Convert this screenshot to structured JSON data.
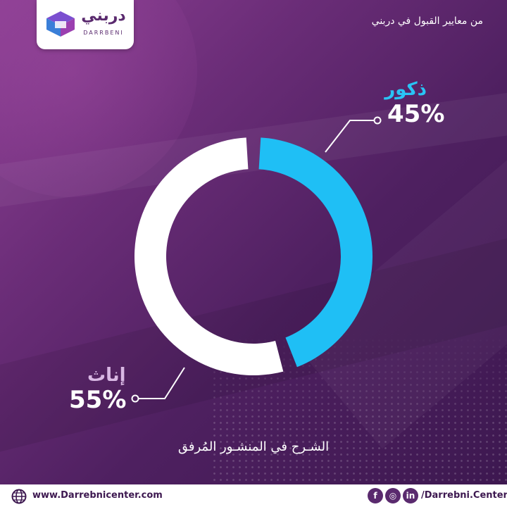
{
  "logo": {
    "arabic": "دربني",
    "latin": "DARRBENI"
  },
  "heading": "من معايير القبول في دربني",
  "chart_data": {
    "type": "pie",
    "variant": "donut",
    "slices": [
      {
        "label": "ذكور",
        "value": 45,
        "display": "45%",
        "color": "#1fbff5"
      },
      {
        "label": "إناث",
        "value": 55,
        "display": "55%",
        "color": "#ffffff"
      }
    ]
  },
  "caption": "الشـرح في المنشـور المُرفق",
  "footer": {
    "website": "www.Darrebnicenter.com",
    "handle": "/Darrebni.Center",
    "social_icons": [
      "facebook-icon",
      "instagram-icon",
      "linkedin-icon"
    ],
    "social_glyphs": {
      "facebook": "f",
      "instagram": "◎",
      "linkedin": "in"
    }
  },
  "colors": {
    "accent": "#1fbff5",
    "brand": "#5a2a6e",
    "background": "#5b2670"
  }
}
